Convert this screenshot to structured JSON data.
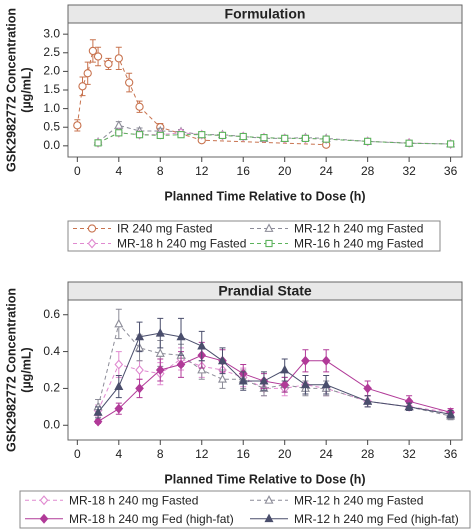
{
  "chart_data": [
    {
      "type": "line",
      "title": "Formulation",
      "xlabel": "Planned Time Relative to Dose (h)",
      "ylabel": [
        "GSK2982772 Concentration",
        "(µg/mL)"
      ],
      "xlim": [
        -0.9,
        37.1
      ],
      "xticks": [
        0,
        4,
        8,
        12,
        16,
        20,
        24,
        28,
        32,
        36
      ],
      "ylim": [
        -0.3,
        3.3
      ],
      "yticks": [
        {
          "value": 0,
          "label": "0.0"
        },
        0.5,
        {
          "value": 1,
          "label": "1.0"
        },
        1.5,
        {
          "value": 2,
          "label": "2.0"
        },
        2.5,
        {
          "value": 3,
          "label": "3.0"
        }
      ],
      "legend": "bottom",
      "series": [
        {
          "name": "IR 240 mg Fasted",
          "color": "#c8734f",
          "marker": "circle",
          "filled": false,
          "line_style": "dashed",
          "x": [
            0,
            0.5,
            1,
            1.5,
            2,
            3,
            4,
            5,
            6,
            8,
            12,
            24
          ],
          "values": [
            0.55,
            1.6,
            1.95,
            2.55,
            2.4,
            2.2,
            2.35,
            1.7,
            1.05,
            0.5,
            0.15,
            0.03
          ],
          "errors": [
            0.15,
            0.25,
            0.3,
            0.3,
            0.25,
            0.15,
            0.3,
            0.25,
            0.15,
            0.1,
            0.05,
            0.02
          ]
        },
        {
          "name": "MR-12 h 240 mg Fasted",
          "color": "#8c8c98",
          "marker": "triangle",
          "filled": false,
          "line_style": "dashed",
          "x": [
            2,
            4,
            6,
            8,
            10,
            12,
            14,
            16,
            18,
            20,
            22,
            24,
            28,
            32,
            36
          ],
          "values": [
            0.1,
            0.55,
            0.4,
            0.4,
            0.38,
            0.3,
            0.3,
            0.25,
            0.2,
            0.2,
            0.22,
            0.2,
            0.12,
            0.07,
            0.05
          ],
          "errors": [
            0.04,
            0.1,
            0.08,
            0.07,
            0.06,
            0.05,
            0.05,
            0.05,
            0.04,
            0.04,
            0.05,
            0.04,
            0.03,
            0.02,
            0.02
          ]
        },
        {
          "name": "MR-18 h 240 mg Fasted",
          "color": "#e08ad0",
          "marker": "diamond",
          "filled": false,
          "line_style": "dashed",
          "x": [
            2,
            4,
            6,
            8,
            10,
            12,
            14,
            16,
            18,
            20,
            22,
            24,
            28,
            32,
            36
          ],
          "values": [
            0.08,
            0.35,
            0.3,
            0.3,
            0.35,
            0.3,
            0.28,
            0.25,
            0.22,
            0.2,
            0.2,
            0.18,
            0.12,
            0.08,
            0.05
          ],
          "errors": [
            0.03,
            0.08,
            0.06,
            0.06,
            0.07,
            0.05,
            0.05,
            0.05,
            0.04,
            0.04,
            0.04,
            0.04,
            0.03,
            0.02,
            0.02
          ]
        },
        {
          "name": "MR-16 h 240 mg Fasted",
          "color": "#5cb35c",
          "marker": "square",
          "filled": false,
          "line_style": "dashed",
          "x": [
            2,
            4,
            6,
            8,
            10,
            12,
            14,
            16,
            18,
            20,
            22,
            24,
            28,
            32,
            36
          ],
          "values": [
            0.08,
            0.35,
            0.3,
            0.28,
            0.3,
            0.3,
            0.28,
            0.25,
            0.22,
            0.2,
            0.2,
            0.18,
            0.12,
            0.07,
            0.05
          ],
          "errors": [
            0.03,
            0.07,
            0.06,
            0.05,
            0.06,
            0.05,
            0.05,
            0.05,
            0.04,
            0.04,
            0.04,
            0.04,
            0.03,
            0.02,
            0.02
          ]
        }
      ]
    },
    {
      "type": "line",
      "title": "Prandial State",
      "xlabel": "Planned Time Relative to Dose (h)",
      "ylabel": [
        "GSK2982772 Concentration",
        "(µg/mL)"
      ],
      "xlim": [
        -0.9,
        37.1
      ],
      "xticks": [
        0,
        4,
        8,
        12,
        16,
        20,
        24,
        28,
        32,
        36
      ],
      "ylim": [
        -0.08,
        0.68
      ],
      "yticks": [
        {
          "value": 0,
          "label": "0.0"
        },
        0.2,
        0.4,
        0.6
      ],
      "legend": "bottom",
      "series": [
        {
          "name": "MR-18 h 240 mg Fasted",
          "color": "#e08ad0",
          "marker": "diamond",
          "filled": false,
          "line_style": "dashed",
          "x": [
            2,
            4,
            6,
            8,
            10,
            12,
            14,
            16,
            18,
            20,
            22,
            24,
            28,
            32,
            36
          ],
          "values": [
            0.08,
            0.33,
            0.3,
            0.28,
            0.36,
            0.32,
            0.3,
            0.26,
            0.2,
            0.2,
            0.22,
            0.2,
            0.13,
            0.1,
            0.07
          ],
          "errors": [
            0.03,
            0.07,
            0.05,
            0.06,
            0.06,
            0.06,
            0.05,
            0.05,
            0.04,
            0.04,
            0.05,
            0.04,
            0.03,
            0.02,
            0.02
          ]
        },
        {
          "name": "MR-12 h 240 mg Fasted",
          "color": "#8c8c98",
          "marker": "triangle",
          "filled": false,
          "line_style": "dashed",
          "x": [
            2,
            4,
            6,
            8,
            10,
            12,
            14,
            16,
            18,
            20,
            22,
            24,
            28,
            32,
            36
          ],
          "values": [
            0.1,
            0.55,
            0.42,
            0.39,
            0.38,
            0.3,
            0.25,
            0.25,
            0.2,
            0.22,
            0.2,
            0.2,
            0.13,
            0.1,
            0.05
          ],
          "errors": [
            0.04,
            0.08,
            0.07,
            0.07,
            0.06,
            0.05,
            0.05,
            0.05,
            0.04,
            0.04,
            0.04,
            0.04,
            0.03,
            0.02,
            0.02
          ]
        },
        {
          "name": "MR-18 h 240 mg Fed (high-fat)",
          "color": "#b13a98",
          "marker": "diamond",
          "filled": true,
          "line_style": "solid",
          "x": [
            2,
            4,
            6,
            8,
            10,
            12,
            14,
            16,
            18,
            20,
            22,
            24,
            28,
            32,
            36
          ],
          "values": [
            0.02,
            0.09,
            0.2,
            0.3,
            0.33,
            0.38,
            0.35,
            0.28,
            0.24,
            0.22,
            0.35,
            0.35,
            0.2,
            0.13,
            0.07
          ],
          "errors": [
            0.01,
            0.03,
            0.05,
            0.06,
            0.07,
            0.07,
            0.06,
            0.05,
            0.04,
            0.04,
            0.06,
            0.06,
            0.04,
            0.03,
            0.02
          ]
        },
        {
          "name": "MR-12 h 240 mg Fed (high-fat)",
          "color": "#4a4e6c",
          "marker": "triangle",
          "filled": true,
          "line_style": "solid",
          "x": [
            2,
            4,
            6,
            8,
            10,
            12,
            14,
            16,
            18,
            20,
            22,
            24,
            28,
            32,
            36
          ],
          "values": [
            0.07,
            0.21,
            0.48,
            0.5,
            0.48,
            0.43,
            0.35,
            0.24,
            0.24,
            0.3,
            0.22,
            0.22,
            0.13,
            0.1,
            0.06
          ],
          "errors": [
            0.03,
            0.06,
            0.08,
            0.08,
            0.1,
            0.08,
            0.07,
            0.05,
            0.05,
            0.06,
            0.05,
            0.05,
            0.03,
            0.02,
            0.02
          ]
        }
      ]
    }
  ]
}
